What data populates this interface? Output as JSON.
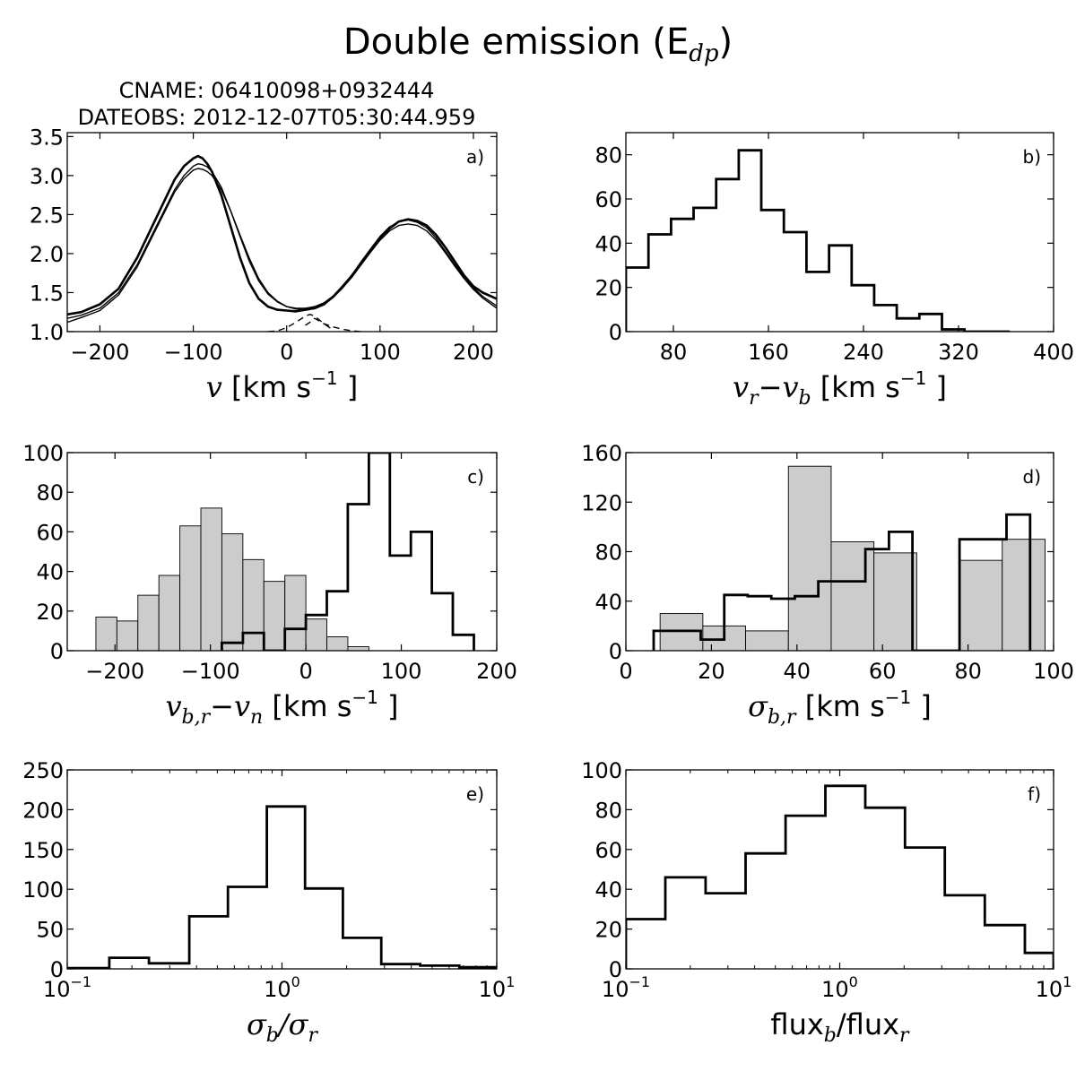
{
  "figure": {
    "title": "Double emission (E",
    "title_sub": "dp",
    "title_close": ")"
  },
  "chart_data": [
    {
      "id": "a",
      "type": "line",
      "panel_label": "a)",
      "header_lines": [
        "CNAME: 06410098+0932444",
        "DATEOBS: 2012-12-07T05:30:44.959"
      ],
      "xlabel_parts": [
        {
          "t": "v",
          "math": true
        },
        {
          "t": " [km s",
          "math": false
        },
        {
          "t": "−1",
          "sup": true
        },
        {
          "t": " ]",
          "math": false
        }
      ],
      "xlim": [
        -235,
        225
      ],
      "ylim": [
        1.0,
        3.55
      ],
      "xticks": [
        -200,
        -100,
        0,
        100,
        200
      ],
      "xtick_labels": [
        "−200",
        "−100",
        "0",
        "100",
        "200"
      ],
      "yticks": [
        1.0,
        1.5,
        2.0,
        2.5,
        3.0,
        3.5
      ],
      "ytick_labels": [
        "1.0",
        "1.5",
        "2.0",
        "2.5",
        "3.0",
        "3.5"
      ],
      "series": [
        {
          "style": "thick",
          "x": [
            -235,
            -220,
            -200,
            -180,
            -160,
            -140,
            -120,
            -110,
            -100,
            -95,
            -90,
            -85,
            -80,
            -70,
            -60,
            -50,
            -40,
            -30,
            -20,
            -10,
            0,
            10,
            20,
            30,
            40,
            50,
            60,
            70,
            80,
            90,
            100,
            110,
            120,
            130,
            140,
            150,
            160,
            170,
            180,
            190,
            200,
            210,
            225
          ],
          "y": [
            1.22,
            1.25,
            1.35,
            1.55,
            1.95,
            2.45,
            2.95,
            3.12,
            3.22,
            3.25,
            3.22,
            3.15,
            3.05,
            2.75,
            2.35,
            1.95,
            1.62,
            1.42,
            1.32,
            1.28,
            1.27,
            1.26,
            1.28,
            1.3,
            1.35,
            1.45,
            1.58,
            1.72,
            1.88,
            2.05,
            2.2,
            2.32,
            2.41,
            2.44,
            2.42,
            2.36,
            2.24,
            2.08,
            1.9,
            1.72,
            1.58,
            1.5,
            1.42
          ]
        },
        {
          "style": "thin",
          "x": [
            -235,
            -220,
            -200,
            -180,
            -160,
            -140,
            -120,
            -110,
            -100,
            -95,
            -90,
            -85,
            -80,
            -70,
            -60,
            -50,
            -40,
            -30,
            -20,
            -10,
            0,
            10,
            20,
            30,
            40,
            50,
            60,
            70,
            80,
            90,
            100,
            110,
            120,
            130,
            140,
            150,
            160,
            170,
            180,
            190,
            200,
            210,
            225
          ],
          "y": [
            1.17,
            1.21,
            1.3,
            1.5,
            1.86,
            2.34,
            2.82,
            3.0,
            3.12,
            3.15,
            3.14,
            3.11,
            3.05,
            2.85,
            2.55,
            2.22,
            1.9,
            1.65,
            1.48,
            1.38,
            1.32,
            1.3,
            1.3,
            1.32,
            1.37,
            1.46,
            1.58,
            1.73,
            1.9,
            2.06,
            2.22,
            2.34,
            2.41,
            2.43,
            2.4,
            2.33,
            2.2,
            2.03,
            1.86,
            1.7,
            1.56,
            1.45,
            1.33
          ]
        },
        {
          "style": "thin",
          "x": [
            -235,
            -220,
            -200,
            -180,
            -160,
            -140,
            -120,
            -110,
            -100,
            -95,
            -90,
            -85,
            -80,
            -70,
            -60,
            -50,
            -40,
            -30,
            -20,
            -10,
            0,
            10,
            20,
            30,
            40,
            50,
            60,
            70,
            80,
            90,
            100,
            110,
            120,
            130,
            140,
            150,
            160,
            170,
            180,
            190,
            200,
            210,
            225
          ],
          "y": [
            1.12,
            1.18,
            1.27,
            1.47,
            1.83,
            2.31,
            2.79,
            2.96,
            3.07,
            3.09,
            3.08,
            3.05,
            3.0,
            2.82,
            2.55,
            2.24,
            1.94,
            1.68,
            1.5,
            1.39,
            1.32,
            1.29,
            1.28,
            1.3,
            1.35,
            1.44,
            1.56,
            1.7,
            1.86,
            2.02,
            2.17,
            2.29,
            2.36,
            2.38,
            2.36,
            2.29,
            2.17,
            2.01,
            1.84,
            1.68,
            1.54,
            1.43,
            1.3
          ]
        },
        {
          "style": "dashed",
          "x": [
            -20,
            -10,
            0,
            10,
            20,
            25,
            30,
            40,
            50
          ],
          "y": [
            1.0,
            1.01,
            1.05,
            1.12,
            1.2,
            1.22,
            1.2,
            1.1,
            1.02
          ]
        },
        {
          "style": "dashed",
          "x": [
            20,
            25,
            30,
            40,
            50,
            60,
            70,
            80
          ],
          "y": [
            1.08,
            1.12,
            1.17,
            1.1,
            1.06,
            1.03,
            1.01,
            1.0
          ]
        }
      ]
    },
    {
      "id": "b",
      "type": "histogram",
      "panel_label": "b)",
      "xlabel_parts": [
        {
          "t": "v",
          "math": true
        },
        {
          "t": "r",
          "sub": true
        },
        {
          "t": "−",
          "math": false
        },
        {
          "t": "v",
          "math": true
        },
        {
          "t": "b",
          "sub": true
        },
        {
          "t": " [km s",
          "math": false
        },
        {
          "t": "−1",
          "sup": true
        },
        {
          "t": " ]",
          "math": false
        }
      ],
      "xlim": [
        40,
        400
      ],
      "ylim": [
        0,
        90
      ],
      "xticks": [
        80,
        160,
        240,
        320,
        400
      ],
      "xtick_labels": [
        "80",
        "160",
        "240",
        "320",
        "400"
      ],
      "yticks": [
        0,
        20,
        40,
        60,
        80
      ],
      "ytick_labels": [
        "0",
        "20",
        "40",
        "60",
        "80"
      ],
      "series": [
        {
          "style": "step",
          "edges": [
            40,
            59,
            78,
            97,
            116,
            135,
            154,
            173,
            192,
            211,
            230,
            249,
            268,
            287,
            306,
            325,
            344,
            363
          ],
          "values": [
            29,
            44,
            51,
            56,
            69,
            82,
            55,
            45,
            27,
            39,
            21,
            12,
            6,
            8,
            1,
            0,
            0
          ]
        }
      ]
    },
    {
      "id": "c",
      "type": "histogram",
      "panel_label": "c)",
      "xlabel_parts": [
        {
          "t": "v",
          "math": true
        },
        {
          "t": "b,r",
          "sub": true
        },
        {
          "t": "−",
          "math": false
        },
        {
          "t": "v",
          "math": true
        },
        {
          "t": "n",
          "sub": true
        },
        {
          "t": " [km s",
          "math": false
        },
        {
          "t": "−1",
          "sup": true
        },
        {
          "t": " ]",
          "math": false
        }
      ],
      "xlim": [
        -250,
        200
      ],
      "ylim": [
        0,
        100
      ],
      "xticks": [
        -200,
        -100,
        0,
        100,
        200
      ],
      "xtick_labels": [
        "−200",
        "−100",
        "0",
        "100",
        "200"
      ],
      "yticks": [
        0,
        20,
        40,
        60,
        80,
        100
      ],
      "ytick_labels": [
        "0",
        "20",
        "40",
        "60",
        "80",
        "100"
      ],
      "series": [
        {
          "style": "filled",
          "edges": [
            -220,
            -198,
            -176,
            -154,
            -132,
            -110,
            -88,
            -66,
            -44,
            -22,
            0,
            22,
            44,
            66
          ],
          "values": [
            17,
            15,
            28,
            38,
            63,
            72,
            59,
            46,
            35,
            38,
            16,
            7,
            2
          ]
        },
        {
          "style": "step",
          "edges": [
            -88,
            -66,
            -44,
            -22,
            0,
            22,
            44,
            66,
            88,
            110,
            132,
            154,
            176
          ],
          "values": [
            4,
            9,
            0,
            11,
            18,
            30,
            74,
            100,
            48,
            60,
            29,
            8
          ]
        }
      ]
    },
    {
      "id": "d",
      "type": "histogram",
      "panel_label": "d)",
      "xlabel_parts": [
        {
          "t": "σ",
          "math": true
        },
        {
          "t": "b,r",
          "sub": true
        },
        {
          "t": " [km s",
          "math": false
        },
        {
          "t": "−1",
          "sup": true
        },
        {
          "t": " ]",
          "math": false
        }
      ],
      "xlim": [
        0,
        100
      ],
      "ylim": [
        0,
        160
      ],
      "xticks": [
        0,
        20,
        40,
        60,
        80,
        100
      ],
      "xtick_labels": [
        "0",
        "20",
        "40",
        "60",
        "80",
        "100"
      ],
      "yticks": [
        0,
        40,
        80,
        120,
        160
      ],
      "ytick_labels": [
        "0",
        "40",
        "80",
        "120",
        "160"
      ],
      "series": [
        {
          "style": "filled",
          "edges": [
            8,
            18,
            28,
            38,
            48,
            58,
            68,
            78,
            88,
            98
          ],
          "values": [
            30,
            20,
            16,
            149,
            88,
            79,
            0,
            73,
            90
          ],
          "note_edges_override": [
            8,
            18,
            28,
            38,
            48,
            58,
            68,
            78,
            88
          ]
        },
        {
          "style": "step",
          "edges": [
            6.5,
            12,
            17.5,
            23,
            28.5,
            34,
            39.5,
            45,
            50.5,
            56,
            61.5,
            67,
            72.5,
            78,
            83.5,
            89,
            94.5
          ],
          "values": [
            16,
            16,
            9,
            45,
            44,
            42,
            44,
            56,
            56,
            82,
            96,
            0,
            0,
            90,
            90,
            110
          ]
        }
      ]
    },
    {
      "id": "e",
      "type": "histogram",
      "panel_label": "e)",
      "xlabel_parts": [
        {
          "t": "σ",
          "math": true
        },
        {
          "t": "b",
          "sub": true
        },
        {
          "t": "/",
          "math": true
        },
        {
          "t": "σ",
          "math": true
        },
        {
          "t": "r",
          "sub": true
        }
      ],
      "xscale": "log",
      "xlim": [
        0.1,
        10
      ],
      "ylim": [
        0,
        250
      ],
      "xticks": [
        0.1,
        1,
        10
      ],
      "xtick_labels": [
        "10",
        "10",
        "10"
      ],
      "xtick_exps": [
        "−1",
        "0",
        "1"
      ],
      "yticks": [
        0,
        50,
        100,
        150,
        200,
        250
      ],
      "ytick_labels": [
        "0",
        "50",
        "100",
        "150",
        "200",
        "250"
      ],
      "series": [
        {
          "style": "step",
          "edges": [
            0.1,
            0.157,
            0.24,
            0.37,
            0.56,
            0.85,
            1.28,
            1.92,
            2.9,
            4.4,
            6.7,
            10
          ],
          "values": [
            1,
            14,
            7,
            66,
            103,
            204,
            101,
            39,
            6,
            4,
            2
          ]
        }
      ]
    },
    {
      "id": "f",
      "type": "histogram",
      "panel_label": "f)",
      "xlabel_parts": [
        {
          "t": "flux",
          "math": false
        },
        {
          "t": "b",
          "sub": true
        },
        {
          "t": "/flux",
          "math": false
        },
        {
          "t": "r",
          "sub": true
        }
      ],
      "xscale": "log",
      "xlim": [
        0.1,
        10
      ],
      "ylim": [
        0,
        100
      ],
      "xticks": [
        0.1,
        1,
        10
      ],
      "xtick_labels": [
        "10",
        "10",
        "10"
      ],
      "xtick_exps": [
        "−1",
        "0",
        "1"
      ],
      "yticks": [
        0,
        20,
        40,
        60,
        80,
        100
      ],
      "ytick_labels": [
        "0",
        "20",
        "40",
        "60",
        "80",
        "100"
      ],
      "series": [
        {
          "style": "step",
          "edges": [
            0.1,
            0.153,
            0.236,
            0.363,
            0.558,
            0.857,
            1.317,
            2.02,
            3.1,
            4.77,
            7.34,
            10
          ],
          "values": [
            25,
            46,
            38,
            58,
            77,
            92,
            81,
            61,
            37,
            22,
            8
          ]
        }
      ]
    }
  ]
}
